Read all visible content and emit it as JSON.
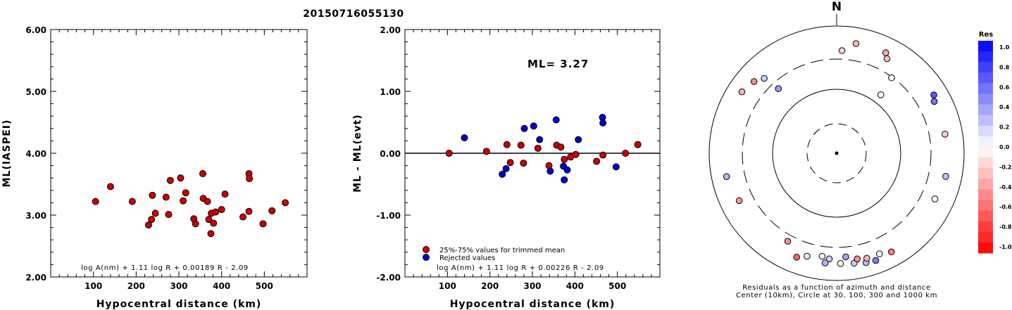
{
  "title": "20150716055130",
  "chart_data": [
    {
      "type": "scatter",
      "id": "left",
      "ylabel": "ML(IASPEI)",
      "xlabel": "Hypocentral distance (km)",
      "xlim": [
        0,
        600
      ],
      "ylim": [
        2.0,
        6.0
      ],
      "xticks": [
        "100",
        "200",
        "300",
        "400",
        "500"
      ],
      "yticks": [
        "2.00",
        "3.00",
        "4.00",
        "5.00",
        "6.00"
      ],
      "equation": "log A(nm) + 1.11 log R + 0.00189 R - 2.09",
      "series": [
        {
          "color": "#cc0000",
          "points": [
            [
              105,
              3.22
            ],
            [
              140,
              3.46
            ],
            [
              191,
              3.22
            ],
            [
              229,
              2.84
            ],
            [
              236,
              2.93
            ],
            [
              238,
              3.32
            ],
            [
              245,
              3.03
            ],
            [
              270,
              3.29
            ],
            [
              276,
              3.01
            ],
            [
              280,
              3.56
            ],
            [
              304,
              3.6
            ],
            [
              310,
              3.23
            ],
            [
              316,
              3.36
            ],
            [
              335,
              2.94
            ],
            [
              339,
              2.86
            ],
            [
              356,
              3.67
            ],
            [
              357,
              3.27
            ],
            [
              367,
              3.22
            ],
            [
              370,
              2.93
            ],
            [
              375,
              2.7
            ],
            [
              376,
              3.03
            ],
            [
              381,
              2.87
            ],
            [
              386,
              3.05
            ],
            [
              400,
              3.09
            ],
            [
              408,
              3.34
            ],
            [
              450,
              2.97
            ],
            [
              464,
              3.67
            ],
            [
              464,
              3.06
            ],
            [
              465,
              3.59
            ],
            [
              497,
              2.86
            ],
            [
              518,
              3.07
            ],
            [
              549,
              3.2
            ]
          ]
        }
      ]
    },
    {
      "type": "scatter",
      "id": "middle",
      "ylabel": "ML - ML(evt)",
      "xlabel": "Hypocentral distance (km)",
      "xlim": [
        0,
        600
      ],
      "ylim": [
        -2.0,
        2.0
      ],
      "xticks": [
        "100",
        "200",
        "300",
        "400",
        "500"
      ],
      "yticks": [
        "-2.00",
        "-1.00",
        "0.00",
        "1.00",
        "2.00"
      ],
      "annotation": "ML= 3.27",
      "equation": "log A(nm) + 1.11 log R + 0.00226 R - 2.09",
      "series": [
        {
          "name": "25%-75% values for trimmed mean",
          "color": "#cc0000",
          "points": [
            [
              104,
              0.0
            ],
            [
              192,
              0.03
            ],
            [
              240,
              0.14
            ],
            [
              248,
              -0.15
            ],
            [
              273,
              0.13
            ],
            [
              279,
              -0.16
            ],
            [
              313,
              0.08
            ],
            [
              339,
              -0.2
            ],
            [
              357,
              0.13
            ],
            [
              367,
              0.1
            ],
            [
              375,
              -0.1
            ],
            [
              390,
              -0.06
            ],
            [
              402,
              -0.02
            ],
            [
              451,
              -0.13
            ],
            [
              466,
              -0.03
            ],
            [
              519,
              0.0
            ],
            [
              548,
              0.14
            ]
          ]
        },
        {
          "name": "Rejected values",
          "color": "#0000cc",
          "points": [
            [
              140,
              0.25
            ],
            [
              229,
              -0.34
            ],
            [
              238,
              -0.25
            ],
            [
              281,
              0.4
            ],
            [
              303,
              0.44
            ],
            [
              317,
              0.22
            ],
            [
              342,
              -0.29
            ],
            [
              356,
              0.54
            ],
            [
              373,
              -0.21
            ],
            [
              375,
              -0.43
            ],
            [
              382,
              -0.27
            ],
            [
              408,
              0.22
            ],
            [
              465,
              0.58
            ],
            [
              466,
              0.49
            ],
            [
              497,
              -0.22
            ]
          ]
        }
      ]
    },
    {
      "type": "polar",
      "id": "right",
      "north_label": "N",
      "caption_line1": "Residuals as a function of azimuth and distance",
      "caption_line2": "Center (10km), Circle at 30, 100, 300 and 1000 km",
      "legend_title": "Res",
      "legend_ticks": [
        "1.0",
        "0.8",
        "0.6",
        "0.4",
        "0.2",
        "0.0",
        "-0.2",
        "-0.4",
        "-0.6",
        "-0.8",
        "-1.0"
      ],
      "stations": [
        {
          "az": 10,
          "dist": 560,
          "res": -0.3
        },
        {
          "az": 3,
          "dist": 410,
          "res": -0.2
        },
        {
          "az": 26,
          "dist": 570,
          "res": -0.35
        },
        {
          "az": 28,
          "dist": 480,
          "res": -0.25
        },
        {
          "az": 36,
          "dist": 290,
          "res": 0.0
        },
        {
          "az": 62,
          "dist": 540,
          "res": 0.55
        },
        {
          "az": 59,
          "dist": 600,
          "res": 0.65
        },
        {
          "az": 37,
          "dist": 140,
          "res": 0.0
        },
        {
          "az": 311,
          "dist": 520,
          "res": -0.45
        },
        {
          "az": 303,
          "dist": 590,
          "res": -0.3
        },
        {
          "az": 316,
          "dist": 430,
          "res": 0.2
        },
        {
          "az": 318,
          "dist": 230,
          "res": 0.4
        },
        {
          "az": 80,
          "dist": 530,
          "res": -0.2
        },
        {
          "az": 102,
          "dist": 560,
          "res": 0.25
        },
        {
          "az": 115,
          "dist": 500,
          "res": 0.0
        },
        {
          "az": 258,
          "dist": 580,
          "res": 0.3
        },
        {
          "az": 244,
          "dist": 500,
          "res": -0.4
        },
        {
          "az": 209,
          "dist": 380,
          "res": -0.45
        },
        {
          "az": 201,
          "dist": 560,
          "res": -0.6
        },
        {
          "az": 188,
          "dist": 430,
          "res": 0.05
        },
        {
          "az": 184,
          "dist": 460,
          "res": 0.2
        },
        {
          "az": 186,
          "dist": 540,
          "res": 0.3
        },
        {
          "az": 178,
          "dist": 540,
          "res": -0.05
        },
        {
          "az": 175,
          "dist": 430,
          "res": 0.35
        },
        {
          "az": 171,
          "dist": 560,
          "res": 0.2
        },
        {
          "az": 169,
          "dist": 490,
          "res": -0.45
        },
        {
          "az": 165,
          "dist": 600,
          "res": 0.25
        },
        {
          "az": 157,
          "dist": 520,
          "res": 0.0
        },
        {
          "az": 151,
          "dist": 590,
          "res": -0.5
        },
        {
          "az": 164,
          "dist": 520,
          "res": -0.3
        },
        {
          "az": 160,
          "dist": 620,
          "res": 0.5
        },
        {
          "az": 196,
          "dist": 480,
          "res": 0.05
        }
      ]
    }
  ]
}
